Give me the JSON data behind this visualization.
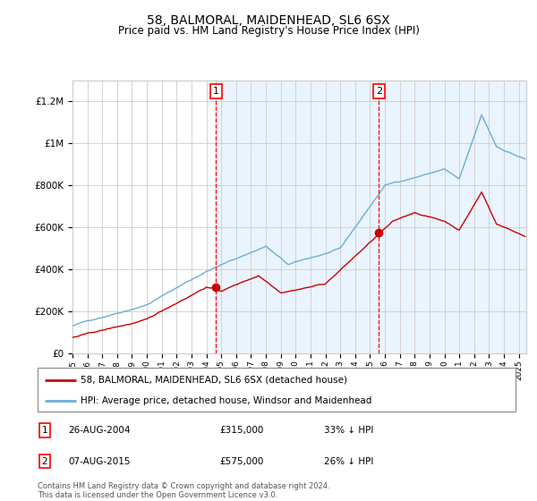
{
  "title": "58, BALMORAL, MAIDENHEAD, SL6 6SX",
  "subtitle": "Price paid vs. HM Land Registry's House Price Index (HPI)",
  "legend_line1": "58, BALMORAL, MAIDENHEAD, SL6 6SX (detached house)",
  "legend_line2": "HPI: Average price, detached house, Windsor and Maidenhead",
  "footer": "Contains HM Land Registry data © Crown copyright and database right 2024.\nThis data is licensed under the Open Government Licence v3.0.",
  "annotation1_label": "1",
  "annotation1_date": "26-AUG-2004",
  "annotation1_price": "£315,000",
  "annotation1_hpi": "33% ↓ HPI",
  "annotation2_label": "2",
  "annotation2_date": "07-AUG-2015",
  "annotation2_price": "£575,000",
  "annotation2_hpi": "26% ↓ HPI",
  "hpi_color": "#6baed6",
  "price_color": "#cc0000",
  "background_fill": "#ddeeff",
  "ylim": [
    0,
    1300000
  ],
  "yticks": [
    0,
    200000,
    400000,
    600000,
    800000,
    1000000,
    1200000
  ],
  "xlim_start": 1995.0,
  "xlim_end": 2025.5,
  "vline1_x": 2004.646,
  "vline2_x": 2015.604,
  "sale1_x": 2004.646,
  "sale1_y": 315000,
  "sale2_x": 2015.604,
  "sale2_y": 575000
}
